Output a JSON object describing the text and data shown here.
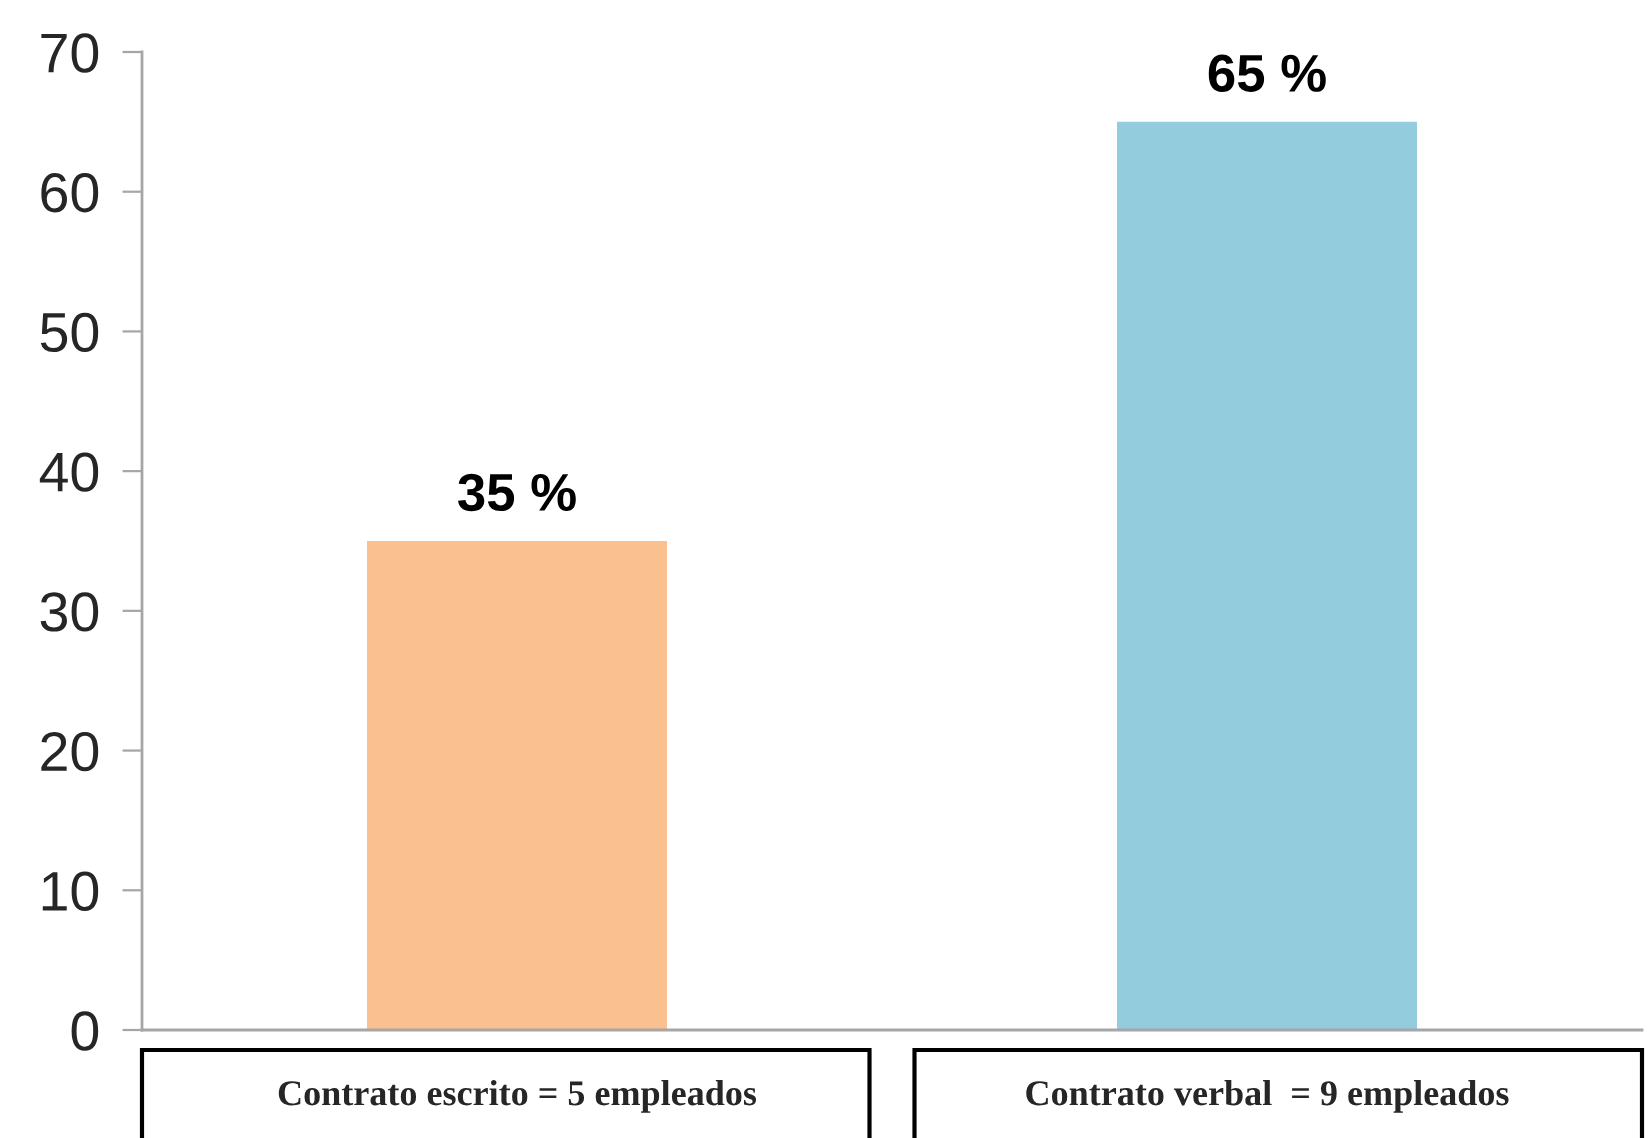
{
  "chart_data": {
    "type": "bar",
    "categories": [
      "Contrato escrito = 5 empleados",
      "Contrato verbal  = 9 empleados"
    ],
    "values": [
      35,
      65
    ],
    "colors": [
      "#FAC090",
      "#93CDDD"
    ],
    "value_labels": [
      "35 %",
      "65 %"
    ],
    "ylim": [
      0,
      70
    ],
    "yticks": [
      0,
      10,
      20,
      30,
      40,
      50,
      60,
      70
    ]
  }
}
